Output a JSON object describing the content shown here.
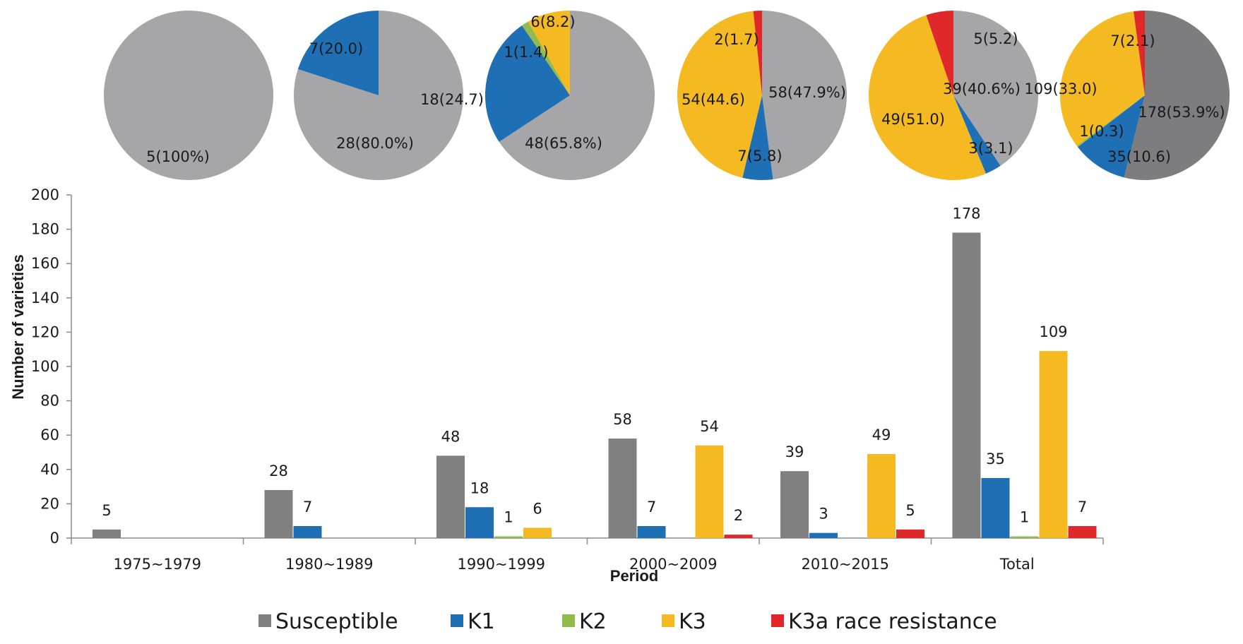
{
  "chart_data": [
    {
      "type": "pie",
      "slices": [
        {
          "series": "Susceptible",
          "value": 5,
          "label": "5(100%)"
        }
      ]
    },
    {
      "type": "pie",
      "slices": [
        {
          "series": "Susceptible",
          "value": 28,
          "label": "28(80.0%)"
        },
        {
          "series": "K1",
          "value": 7,
          "label": "7(20.0)"
        }
      ]
    },
    {
      "type": "pie",
      "slices": [
        {
          "series": "Susceptible",
          "value": 48,
          "label": "48(65.8%)"
        },
        {
          "series": "K1",
          "value": 18,
          "label": "18(24.7)"
        },
        {
          "series": "K2",
          "value": 1,
          "label": "1(1.4)"
        },
        {
          "series": "K3",
          "value": 6,
          "label": "6(8.2)"
        }
      ]
    },
    {
      "type": "pie",
      "slices": [
        {
          "series": "Susceptible",
          "value": 58,
          "label": "58(47.9%)"
        },
        {
          "series": "K1",
          "value": 7,
          "label": "7(5.8)"
        },
        {
          "series": "K3",
          "value": 54,
          "label": "54(44.6)"
        },
        {
          "series": "K3a race resistance",
          "value": 2,
          "label": "2(1.7)"
        }
      ]
    },
    {
      "type": "pie",
      "slices": [
        {
          "series": "Susceptible",
          "value": 39,
          "label": "39(40.6%)"
        },
        {
          "series": "K1",
          "value": 3,
          "label": "3(3.1)"
        },
        {
          "series": "K3",
          "value": 49,
          "label": "49(51.0)"
        },
        {
          "series": "K3a race resistance",
          "value": 5,
          "label": "5(5.2)"
        }
      ]
    },
    {
      "type": "pie",
      "slices": [
        {
          "series": "Susceptible",
          "value": 178,
          "label": "178(53.9%)"
        },
        {
          "series": "K1",
          "value": 35,
          "label": "35(10.6)"
        },
        {
          "series": "K2",
          "value": 1,
          "label": "1(0.3)"
        },
        {
          "series": "K3",
          "value": 109,
          "label": "109(33.0)"
        },
        {
          "series": "K3a race resistance",
          "value": 7,
          "label": "7(2.1)"
        }
      ]
    },
    {
      "type": "bar",
      "categories": [
        "1975~1979",
        "1980~1989",
        "1990~1999",
        "2000~2009",
        "2010~2015",
        "Total"
      ],
      "series": [
        {
          "name": "Susceptible",
          "values": [
            5,
            28,
            48,
            58,
            39,
            178
          ]
        },
        {
          "name": "K1",
          "values": [
            null,
            7,
            18,
            7,
            3,
            35
          ]
        },
        {
          "name": "K2",
          "values": [
            null,
            null,
            1,
            null,
            null,
            1
          ]
        },
        {
          "name": "K3",
          "values": [
            null,
            null,
            6,
            54,
            49,
            109
          ]
        },
        {
          "name": "K3a race resistance",
          "values": [
            null,
            null,
            null,
            2,
            5,
            7
          ]
        }
      ],
      "xlabel": "Period",
      "ylabel": "Number of varieties",
      "ylim": [
        0,
        200
      ],
      "yticks": [
        0,
        20,
        40,
        60,
        80,
        100,
        120,
        140,
        160,
        180,
        200
      ],
      "grid": false,
      "data_labels": true,
      "legend_position": "bottom"
    }
  ],
  "colors": {
    "Susceptible": "#808080",
    "K1": "#1f6fb5",
    "K2": "#8fbc4a",
    "K3": "#f5b921",
    "K3a race resistance": "#e0282a",
    "pie_susceptible": "#a6a6a8",
    "pie_total_susceptible": "#7d7d7f"
  }
}
